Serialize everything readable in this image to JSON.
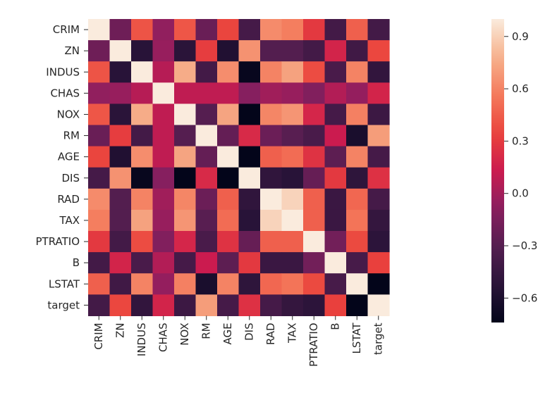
{
  "chart_data": {
    "type": "heatmap",
    "title": "",
    "xlabel": "",
    "ylabel": "",
    "labels": [
      "CRIM",
      "ZN",
      "INDUS",
      "CHAS",
      "NOX",
      "RM",
      "AGE",
      "DIS",
      "RAD",
      "TAX",
      "PTRATIO",
      "B",
      "LSTAT",
      "target"
    ],
    "matrix": [
      [
        1.0,
        -0.2,
        0.41,
        -0.06,
        0.42,
        -0.22,
        0.35,
        -0.38,
        0.63,
        0.58,
        0.29,
        -0.39,
        0.46,
        -0.39
      ],
      [
        -0.2,
        1.0,
        -0.53,
        -0.04,
        -0.52,
        0.31,
        -0.57,
        0.66,
        -0.31,
        -0.31,
        -0.39,
        0.18,
        -0.41,
        0.36
      ],
      [
        0.41,
        -0.53,
        1.0,
        0.06,
        0.76,
        -0.39,
        0.64,
        -0.71,
        0.6,
        0.72,
        0.38,
        -0.36,
        0.6,
        -0.48
      ],
      [
        -0.06,
        -0.04,
        0.06,
        1.0,
        0.09,
        0.09,
        0.09,
        -0.1,
        -0.01,
        -0.04,
        -0.12,
        0.05,
        -0.05,
        0.18
      ],
      [
        0.42,
        -0.52,
        0.76,
        0.09,
        1.0,
        -0.3,
        0.73,
        -0.77,
        0.61,
        0.67,
        0.19,
        -0.38,
        0.59,
        -0.43
      ],
      [
        -0.22,
        0.31,
        -0.39,
        0.09,
        -0.3,
        1.0,
        -0.24,
        0.21,
        -0.21,
        -0.29,
        -0.36,
        0.13,
        -0.61,
        0.7
      ],
      [
        0.35,
        -0.57,
        0.64,
        0.09,
        0.73,
        -0.24,
        1.0,
        -0.75,
        0.46,
        0.51,
        0.26,
        -0.27,
        0.6,
        -0.38
      ],
      [
        -0.38,
        0.66,
        -0.71,
        -0.1,
        -0.77,
        0.21,
        -0.75,
        1.0,
        -0.49,
        -0.53,
        -0.23,
        0.29,
        -0.5,
        0.25
      ],
      [
        0.63,
        -0.31,
        0.6,
        -0.01,
        0.61,
        -0.21,
        0.46,
        -0.49,
        1.0,
        0.91,
        0.46,
        -0.44,
        0.49,
        -0.38
      ],
      [
        0.58,
        -0.31,
        0.72,
        -0.04,
        0.67,
        -0.29,
        0.51,
        -0.53,
        0.91,
        1.0,
        0.46,
        -0.44,
        0.54,
        -0.47
      ],
      [
        0.29,
        -0.39,
        0.38,
        -0.12,
        0.19,
        -0.36,
        0.26,
        -0.23,
        0.46,
        0.46,
        1.0,
        -0.18,
        0.37,
        -0.51
      ],
      [
        -0.39,
        0.18,
        -0.36,
        0.05,
        -0.38,
        0.13,
        -0.27,
        0.29,
        -0.44,
        -0.44,
        -0.18,
        1.0,
        -0.37,
        0.33
      ],
      [
        0.46,
        -0.41,
        0.6,
        -0.05,
        0.59,
        -0.61,
        0.6,
        -0.5,
        0.49,
        0.54,
        0.37,
        -0.37,
        1.0,
        -0.74
      ],
      [
        -0.39,
        0.36,
        -0.48,
        0.18,
        -0.43,
        0.7,
        -0.38,
        0.25,
        -0.38,
        -0.47,
        -0.51,
        0.33,
        -0.74,
        1.0
      ]
    ],
    "colorscale": "rocket",
    "vmin": -0.74,
    "vmax": 1.0,
    "colorbar_ticks": [
      {
        "value": 0.9,
        "label": "0.9"
      },
      {
        "value": 0.6,
        "label": "0.6"
      },
      {
        "value": 0.3,
        "label": "0.3"
      },
      {
        "value": 0.0,
        "label": "0.0"
      },
      {
        "value": -0.3,
        "label": "−0.3"
      },
      {
        "value": -0.6,
        "label": "−0.6"
      }
    ]
  }
}
